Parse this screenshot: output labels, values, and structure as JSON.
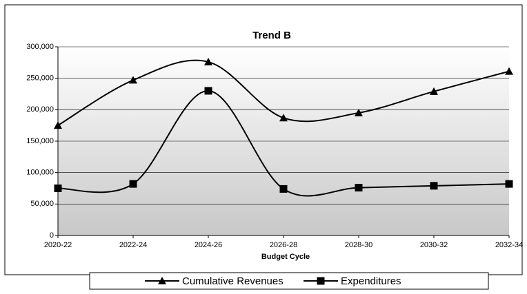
{
  "chart_data": {
    "type": "line",
    "title": "Trend B",
    "x_label": "Budget Cycle",
    "categories": [
      "2020-22",
      "2022-24",
      "2024-26",
      "2026-28",
      "2028-30",
      "2030-32",
      "2032-34"
    ],
    "series": [
      {
        "name": "Cumulative Revenues",
        "color": "#000000",
        "marker": "triangle",
        "values": [
          175000,
          247000,
          276000,
          187000,
          195000,
          229000,
          261000
        ]
      },
      {
        "name": "Expenditures",
        "color": "#000000",
        "marker": "square",
        "values": [
          75000,
          82000,
          230000,
          74000,
          76000,
          79000,
          82000
        ]
      }
    ],
    "ylim": [
      0,
      300000
    ],
    "yticks": [
      0,
      {
        "value": 50000,
        "label": "50,000"
      },
      {
        "value": 100000,
        "label": "100,000"
      },
      {
        "value": 150000,
        "label": "150,000"
      },
      {
        "value": 200000,
        "label": "200,000"
      },
      {
        "value": 250000,
        "label": "250,000"
      },
      {
        "value": 300000,
        "label": "300,000"
      }
    ],
    "grid": true,
    "legend": "bottom",
    "smooth": true
  }
}
